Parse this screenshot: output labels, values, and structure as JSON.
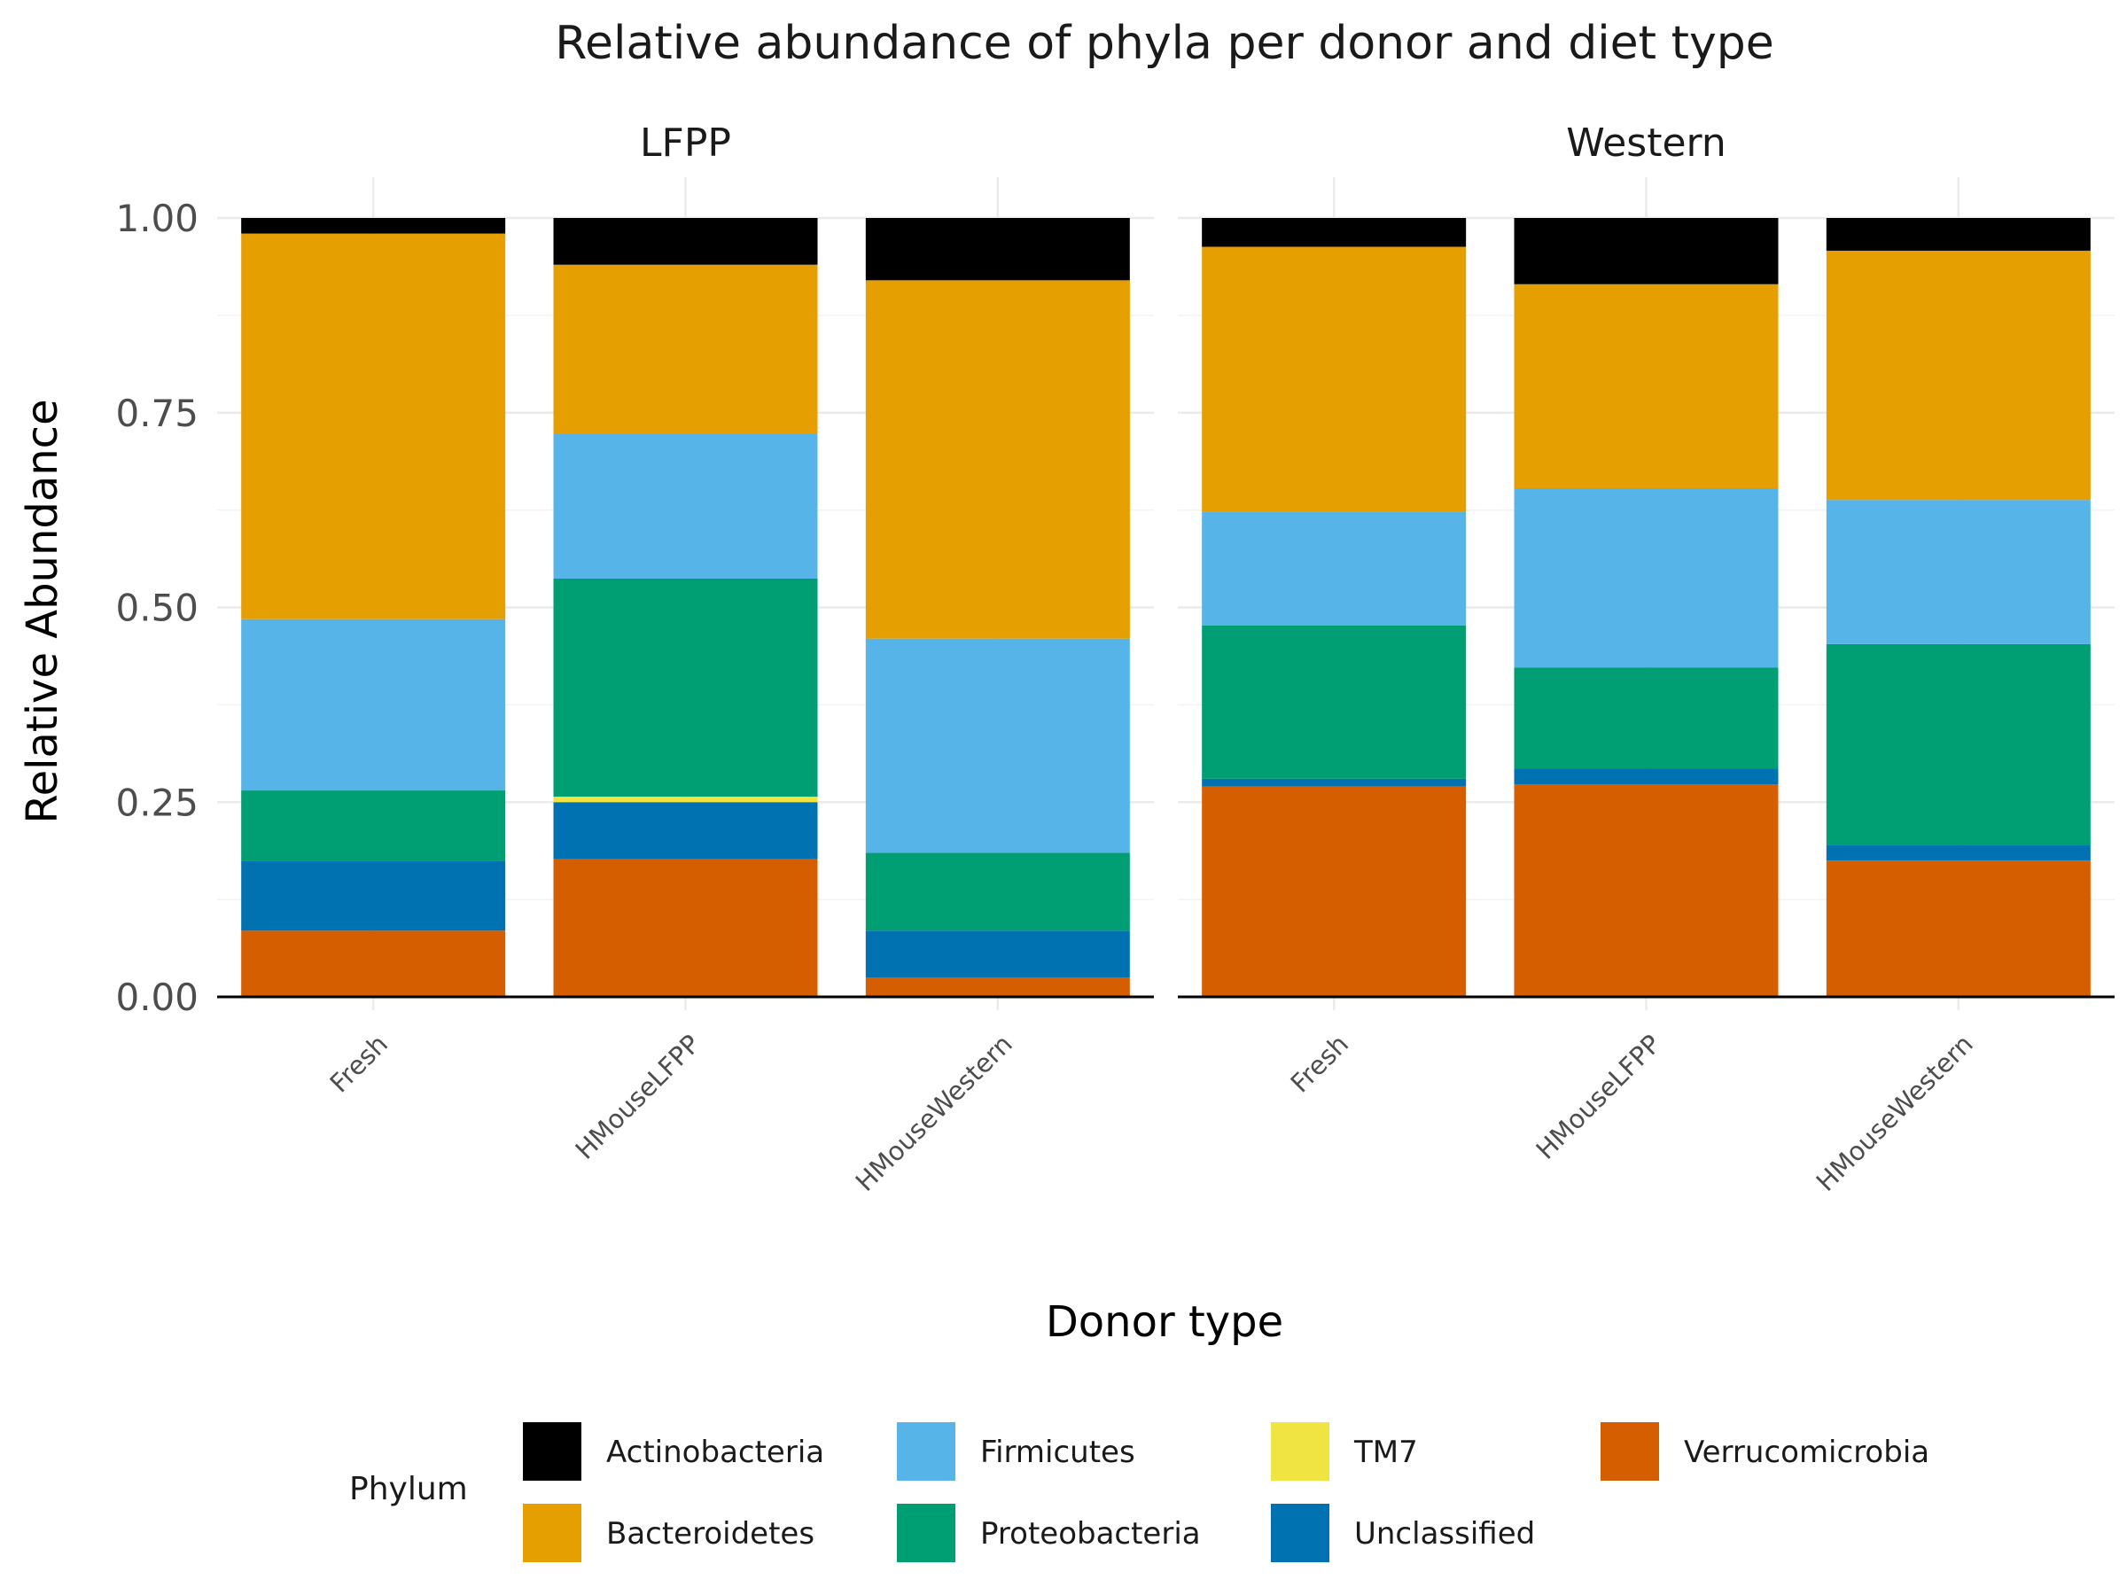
{
  "chart_data": {
    "type": "bar",
    "stacked": true,
    "title": "Relative abundance of phyla per donor and diet type",
    "xlabel": "Donor type",
    "ylabel": "Relative Abundance",
    "ylim": [
      0,
      1
    ],
    "yticks": [
      "0.00",
      "0.25",
      "0.50",
      "0.75",
      "1.00"
    ],
    "ytick_values": [
      0,
      0.25,
      0.5,
      0.75,
      1.0
    ],
    "grid": true,
    "legend_title": "Phylum",
    "legend_position": "bottom",
    "categories": [
      "Fresh",
      "HMouseLFPP",
      "HMouseWestern"
    ],
    "phyla": [
      {
        "name": "Actinobacteria",
        "color": "#000000"
      },
      {
        "name": "Bacteroidetes",
        "color": "#E69F00"
      },
      {
        "name": "Firmicutes",
        "color": "#56B4E9"
      },
      {
        "name": "Proteobacteria",
        "color": "#009E73"
      },
      {
        "name": "TM7",
        "color": "#F0E442"
      },
      {
        "name": "Unclassified",
        "color": "#0072B2"
      },
      {
        "name": "Verrucomicrobia",
        "color": "#D55E00"
      }
    ],
    "stack_order_bottom_to_top": [
      "Verrucomicrobia",
      "Unclassified",
      "TM7",
      "Proteobacteria",
      "Firmicutes",
      "Bacteroidetes",
      "Actinobacteria"
    ],
    "panels": [
      {
        "name": "LFPP",
        "bars": [
          {
            "category": "Fresh",
            "values": {
              "Verrucomicrobia": 0.085,
              "Unclassified": 0.09,
              "TM7": 0.0,
              "Proteobacteria": 0.09,
              "Firmicutes": 0.22,
              "Bacteroidetes": 0.495,
              "Actinobacteria": 0.02
            }
          },
          {
            "category": "HMouseLFPP",
            "values": {
              "Verrucomicrobia": 0.177,
              "Unclassified": 0.073,
              "TM7": 0.007,
              "Proteobacteria": 0.28,
              "Firmicutes": 0.186,
              "Bacteroidetes": 0.217,
              "Actinobacteria": 0.06
            }
          },
          {
            "category": "HMouseWestern",
            "values": {
              "Verrucomicrobia": 0.025,
              "Unclassified": 0.06,
              "TM7": 0.0,
              "Proteobacteria": 0.1,
              "Firmicutes": 0.275,
              "Bacteroidetes": 0.46,
              "Actinobacteria": 0.08
            }
          }
        ]
      },
      {
        "name": "Western",
        "bars": [
          {
            "category": "Fresh",
            "values": {
              "Verrucomicrobia": 0.27,
              "Unclassified": 0.01,
              "TM7": 0.0,
              "Proteobacteria": 0.197,
              "Firmicutes": 0.146,
              "Bacteroidetes": 0.34,
              "Actinobacteria": 0.037
            }
          },
          {
            "category": "HMouseLFPP",
            "values": {
              "Verrucomicrobia": 0.273,
              "Unclassified": 0.02,
              "TM7": 0.0,
              "Proteobacteria": 0.13,
              "Firmicutes": 0.23,
              "Bacteroidetes": 0.262,
              "Actinobacteria": 0.085
            }
          },
          {
            "category": "HMouseWestern",
            "values": {
              "Verrucomicrobia": 0.175,
              "Unclassified": 0.02,
              "TM7": 0.0,
              "Proteobacteria": 0.258,
              "Firmicutes": 0.185,
              "Bacteroidetes": 0.32,
              "Actinobacteria": 0.042
            }
          }
        ]
      }
    ]
  }
}
